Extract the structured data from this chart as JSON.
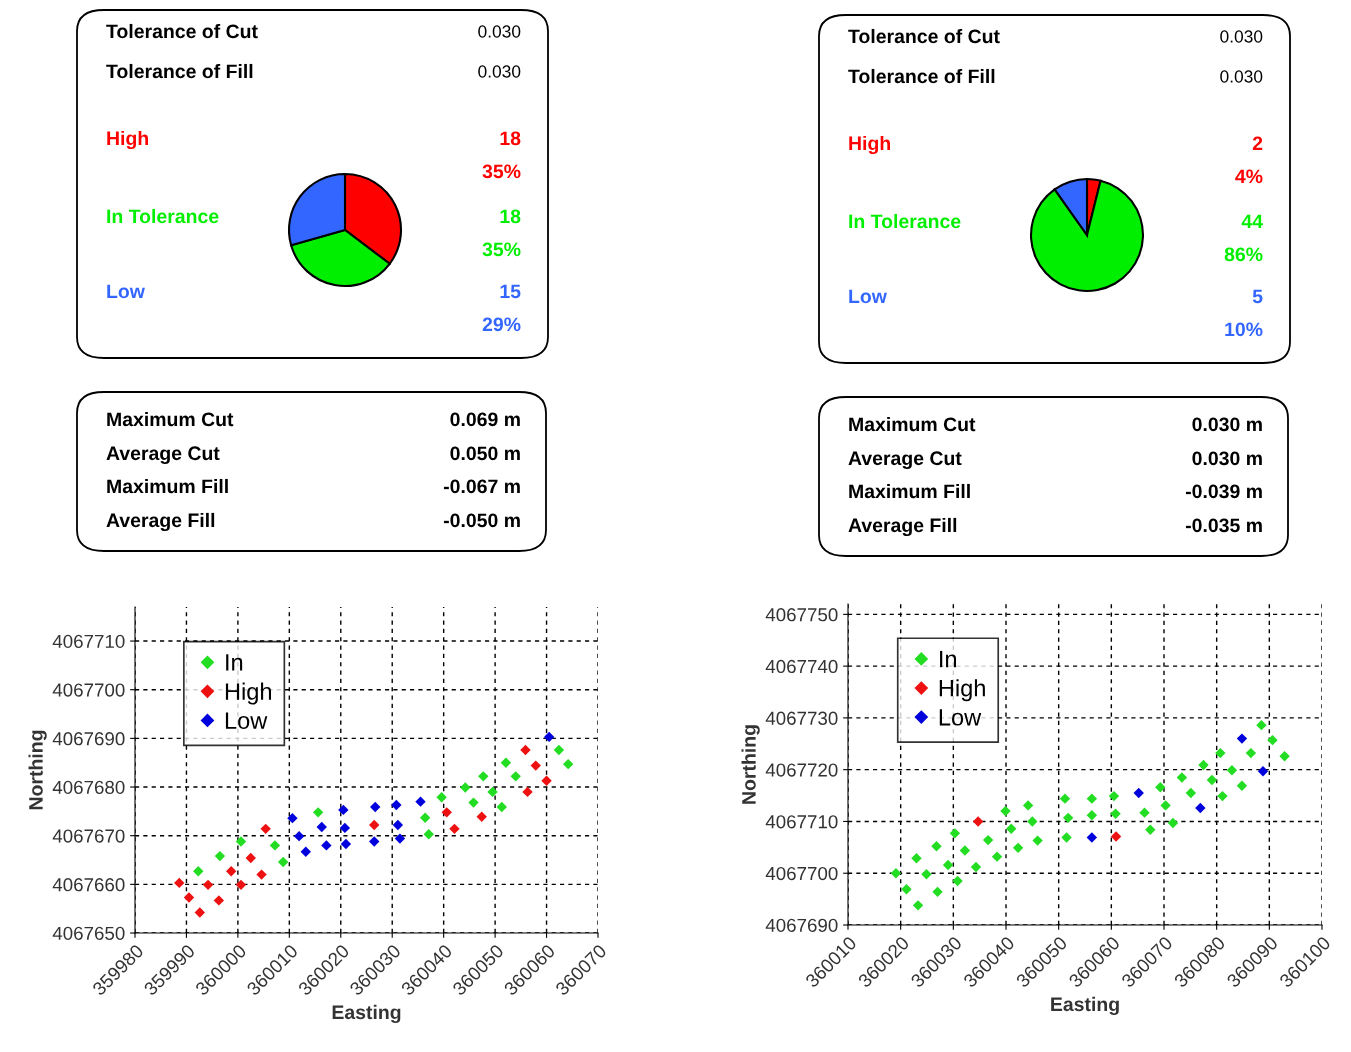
{
  "chart_data": [
    {
      "type": "other",
      "annotations": [
        "Tolerance of Cut",
        "0.030",
        "Tolerance of Fill",
        "0.030"
      ]
    },
    {
      "type": "other",
      "colors": [
        "#ff0000",
        "#00ee00",
        "#3366ff"
      ],
      "annotations": [
        "High",
        "18",
        "35%",
        "In Tolerance",
        "18",
        "35%",
        "Low",
        "15",
        "29%"
      ]
    },
    {
      "type": "pie",
      "categories": [
        null,
        null,
        null
      ],
      "values": [
        35.3,
        35.3,
        29.4
      ],
      "colors": [
        "#ff0000",
        "#00ee00",
        "#3366ff"
      ]
    },
    {
      "type": "other",
      "annotations": [
        "Maximum Cut",
        "0.069 m",
        "Average Cut",
        "0.050 m",
        "Maximum Fill",
        "-0.067 m",
        "Average Fill",
        "-0.050 m"
      ]
    },
    {
      "type": "scatter",
      "xlabel": "Easting",
      "ylabel": "Northing",
      "xlim": [
        359980,
        360070
      ],
      "xticks": [
        359980,
        359990,
        360000,
        360010,
        360020,
        360030,
        360040,
        360050,
        360060,
        360070
      ],
      "ylim": [
        4067650,
        4067717
      ],
      "yticks": [
        4067650,
        4067660,
        4067670,
        4067680,
        4067690,
        4067700,
        4067710
      ],
      "grid": true,
      "legend": "top left",
      "marker": "diamond",
      "series": [
        {
          "name": "In",
          "color": "#22dd22",
          "x": [
            359992.3,
            359996.5,
            360000.6,
            360007.2,
            360008.8,
            360015.6,
            360036.4,
            360037.1,
            360039.6,
            360044.2,
            360045.8,
            360047.7,
            360049.5,
            360051.3,
            360052.1,
            360054.0,
            360062.4,
            360064.2
          ],
          "values": [
            4067662.7,
            4067665.8,
            4067668.8,
            4067668.0,
            4067664.6,
            4067674.8,
            4067673.7,
            4067670.3,
            4067677.9,
            4067679.9,
            4067676.8,
            4067682.2,
            4067679.0,
            4067675.9,
            4067685.0,
            4067682.2,
            4067687.6,
            4067684.7
          ]
        },
        {
          "name": "High",
          "color": "#ee1111",
          "x": [
            359988.6,
            359990.5,
            359992.6,
            359994.2,
            359996.3,
            359998.7,
            360000.6,
            360002.5,
            360004.6,
            360005.4,
            360026.5,
            360040.6,
            360042.1,
            360047.4,
            360055.9,
            360057.9,
            360056.3,
            360060.0
          ],
          "values": [
            4067660.3,
            4067657.3,
            4067654.2,
            4067659.9,
            4067656.7,
            4067662.7,
            4067659.9,
            4067665.4,
            4067662.0,
            4067671.4,
            4067672.2,
            4067674.8,
            4067671.4,
            4067673.9,
            4067687.6,
            4067684.4,
            4067679.0,
            4067681.3
          ]
        },
        {
          "name": "Low",
          "color": "#0000dd",
          "x": [
            360010.6,
            360011.9,
            360013.2,
            360016.3,
            360017.2,
            360020.5,
            360020.8,
            360021.0,
            360026.7,
            360026.5,
            360030.8,
            360031.1,
            360031.5,
            360035.5,
            360060.5
          ],
          "values": [
            4067673.6,
            4067669.9,
            4067666.7,
            4067671.8,
            4067668.0,
            4067675.3,
            4067671.6,
            4067668.3,
            4067675.9,
            4067668.8,
            4067676.3,
            4067672.2,
            4067669.4,
            4067677.0,
            4067690.3
          ]
        }
      ]
    },
    {
      "type": "other",
      "annotations": [
        "Tolerance of Cut",
        "0.030",
        "Tolerance of Fill",
        "0.030"
      ]
    },
    {
      "type": "other",
      "colors": [
        "#ff0000",
        "#00ee00",
        "#3366ff"
      ],
      "annotations": [
        "High",
        "2",
        "4%",
        "In Tolerance",
        "44",
        "86%",
        "Low",
        "5",
        "10%"
      ]
    },
    {
      "type": "pie",
      "categories": [
        null,
        null,
        null
      ],
      "values": [
        3.9,
        86.3,
        9.8
      ],
      "colors": [
        "#ff0000",
        "#00ee00",
        "#3366ff"
      ]
    },
    {
      "type": "other",
      "annotations": [
        "Maximum Cut",
        "0.030 m",
        "Average Cut",
        "0.030 m",
        "Maximum Fill",
        "-0.039 m",
        "Average Fill",
        "-0.035 m"
      ]
    },
    {
      "type": "scatter",
      "xlabel": "Easting",
      "ylabel": "Northing",
      "xlim": [
        360010,
        360100
      ],
      "xticks": [
        360010,
        360020,
        360030,
        360040,
        360050,
        360060,
        360070,
        360080,
        360090,
        360100
      ],
      "ylim": [
        4067690,
        4067752
      ],
      "yticks": [
        4067690,
        4067700,
        4067710,
        4067720,
        4067730,
        4067740,
        4067750
      ],
      "grid": true,
      "legend": "top left",
      "marker": "diamond",
      "series": [
        {
          "name": "In",
          "color": "#22dd22",
          "x": [
            360019.1,
            360021.1,
            360023.3,
            360023.0,
            360024.9,
            360027.0,
            360026.8,
            360029.0,
            360030.8,
            360030.3,
            360032.2,
            360034.3,
            360036.6,
            360038.3,
            360039.9,
            360041.0,
            360042.3,
            360044.2,
            360045.0,
            360046.0,
            360051.2,
            360051.8,
            360051.5,
            360056.3,
            360056.3,
            360060.5,
            360060.8,
            360066.3,
            360067.4,
            360069.3,
            360070.3,
            360071.7,
            360073.4,
            360075.1,
            360077.5,
            360079.1,
            360080.7,
            360081.1,
            360082.9,
            360084.8,
            360086.5,
            360088.5,
            360090.6,
            360092.9
          ],
          "values": [
            4067700.0,
            4067696.9,
            4067693.8,
            4067702.9,
            4067699.8,
            4067696.4,
            4067705.2,
            4067701.6,
            4067698.5,
            4067707.7,
            4067704.4,
            4067701.2,
            4067706.4,
            4067703.2,
            4067712.0,
            4067708.6,
            4067704.9,
            4067713.1,
            4067710.0,
            4067706.3,
            4067714.4,
            4067710.7,
            4067706.9,
            4067714.4,
            4067711.2,
            4067714.9,
            4067711.5,
            4067711.7,
            4067708.4,
            4067716.6,
            4067713.1,
            4067709.7,
            4067718.5,
            4067715.5,
            4067720.9,
            4067718.0,
            4067723.2,
            4067714.9,
            4067719.9,
            4067716.9,
            4067723.2,
            4067728.6,
            4067725.7,
            4067722.6
          ]
        },
        {
          "name": "High",
          "color": "#ee1111",
          "x": [
            360034.7,
            360060.9
          ],
          "values": [
            4067710.0,
            4067707.1
          ]
        },
        {
          "name": "Low",
          "color": "#0000dd",
          "x": [
            360056.3,
            360065.2,
            360076.9,
            360084.8,
            360088.8
          ],
          "values": [
            4067706.9,
            4067715.5,
            4067712.6,
            4067726.0,
            4067719.7
          ]
        }
      ]
    }
  ]
}
